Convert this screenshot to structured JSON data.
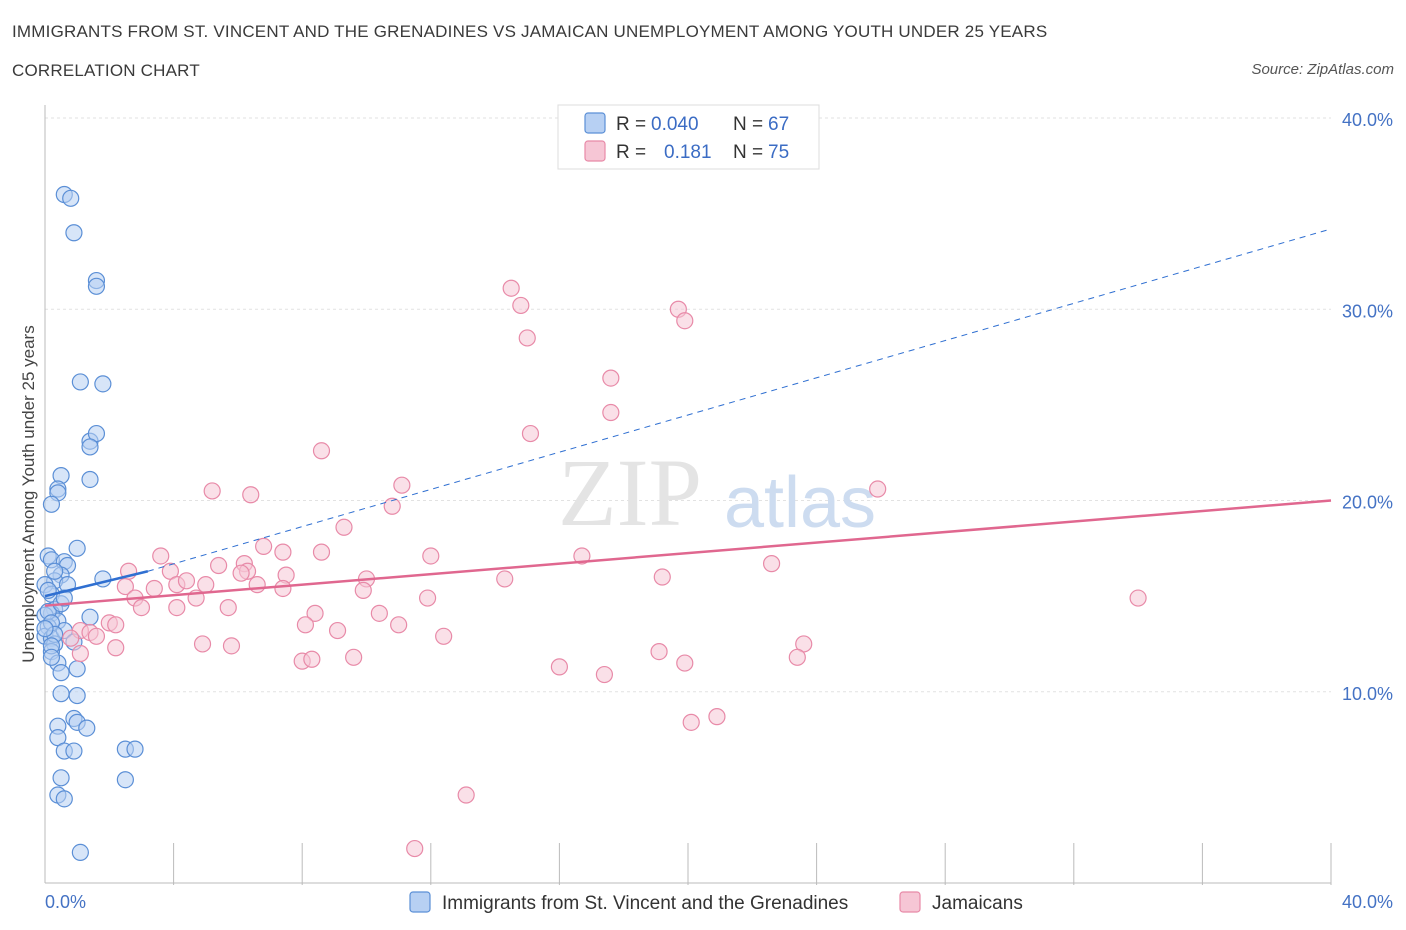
{
  "title": "IMMIGRANTS FROM ST. VINCENT AND THE GRENADINES VS JAMAICAN UNEMPLOYMENT AMONG YOUTH UNDER 25 YEARS",
  "subtitle": "CORRELATION CHART",
  "source": "Source: ZipAtlas.com",
  "colors": {
    "blue": "#5b8fd6",
    "blue_fill": "#b7d0f3",
    "pink": "#e88aa8",
    "pink_fill": "#f6c6d5",
    "blue_line": "#2f6fd1",
    "pink_line": "#e0678f"
  },
  "legend": {
    "r_label": "R =",
    "n_label": "N =",
    "series": [
      {
        "r": "0.040",
        "n": "67"
      },
      {
        "r": "0.181",
        "n": "75"
      }
    ]
  },
  "watermark": {
    "zip": "ZIP",
    "atlas": "atlas"
  },
  "chart_data": {
    "type": "scatter",
    "xlabel": "",
    "ylabel": "Unemployment Among Youth under 25 years",
    "xlim": [
      0,
      40
    ],
    "ylim": [
      0,
      40
    ],
    "x_tick_labels": [
      "0.0%",
      "40.0%"
    ],
    "y_ticks": [
      10,
      20,
      30,
      40
    ],
    "y_tick_labels": [
      "10.0%",
      "20.0%",
      "30.0%",
      "40.0%"
    ],
    "grid": true,
    "legend_position": "top-center",
    "series": [
      {
        "name": "Immigrants from St. Vincent and the Grenadines",
        "trend": {
          "x": [
            0,
            3.2
          ],
          "y": [
            15.0,
            16.3
          ],
          "dashed_extension": {
            "x": [
              3.2,
              40
            ],
            "y": [
              16.3,
              34.2
            ]
          }
        },
        "points": [
          [
            0.6,
            36.0
          ],
          [
            0.8,
            35.8
          ],
          [
            0.9,
            34.0
          ],
          [
            1.6,
            31.5
          ],
          [
            1.6,
            31.2
          ],
          [
            1.1,
            26.2
          ],
          [
            1.8,
            26.1
          ],
          [
            1.4,
            23.1
          ],
          [
            1.6,
            23.5
          ],
          [
            1.4,
            22.8
          ],
          [
            1.4,
            21.1
          ],
          [
            0.5,
            21.3
          ],
          [
            0.4,
            20.6
          ],
          [
            0.4,
            20.4
          ],
          [
            0.2,
            19.8
          ],
          [
            0.1,
            17.1
          ],
          [
            0.2,
            16.9
          ],
          [
            0.6,
            16.8
          ],
          [
            0.7,
            16.6
          ],
          [
            1.0,
            17.5
          ],
          [
            0.5,
            16.1
          ],
          [
            0.3,
            15.8
          ],
          [
            0.0,
            15.6
          ],
          [
            0.7,
            15.6
          ],
          [
            1.8,
            15.9
          ],
          [
            0.2,
            15.1
          ],
          [
            0.3,
            14.3
          ],
          [
            0.2,
            14.1
          ],
          [
            0.0,
            14.0
          ],
          [
            0.4,
            13.7
          ],
          [
            0.1,
            13.4
          ],
          [
            0.0,
            12.9
          ],
          [
            0.2,
            12.8
          ],
          [
            0.3,
            12.5
          ],
          [
            0.6,
            13.2
          ],
          [
            0.9,
            12.6
          ],
          [
            0.2,
            12.1
          ],
          [
            0.4,
            11.5
          ],
          [
            0.5,
            11.0
          ],
          [
            1.0,
            11.2
          ],
          [
            0.5,
            9.9
          ],
          [
            1.0,
            9.8
          ],
          [
            0.4,
            8.2
          ],
          [
            0.9,
            8.6
          ],
          [
            1.0,
            8.4
          ],
          [
            1.3,
            8.1
          ],
          [
            0.4,
            7.6
          ],
          [
            0.6,
            6.9
          ],
          [
            0.9,
            6.9
          ],
          [
            2.5,
            7.0
          ],
          [
            2.8,
            7.0
          ],
          [
            0.5,
            5.5
          ],
          [
            2.5,
            5.4
          ],
          [
            0.4,
            4.6
          ],
          [
            0.6,
            4.4
          ],
          [
            1.1,
            1.6
          ],
          [
            0.1,
            14.2
          ],
          [
            0.2,
            13.6
          ],
          [
            0.3,
            13.0
          ],
          [
            0.5,
            14.6
          ],
          [
            0.2,
            12.4
          ],
          [
            0.0,
            13.3
          ],
          [
            0.3,
            16.3
          ],
          [
            0.1,
            15.3
          ],
          [
            1.4,
            13.9
          ],
          [
            0.6,
            14.9
          ],
          [
            0.2,
            11.8
          ]
        ]
      },
      {
        "name": "Jamaicans",
        "trend": {
          "x": [
            0,
            40
          ],
          "y": [
            14.5,
            20.0
          ]
        },
        "points": [
          [
            14.8,
            30.2
          ],
          [
            15.0,
            28.5
          ],
          [
            14.5,
            31.1
          ],
          [
            19.7,
            30.0
          ],
          [
            19.9,
            29.4
          ],
          [
            17.6,
            26.4
          ],
          [
            17.6,
            24.6
          ],
          [
            15.1,
            23.5
          ],
          [
            8.6,
            22.6
          ],
          [
            11.1,
            20.8
          ],
          [
            5.2,
            20.5
          ],
          [
            6.4,
            20.3
          ],
          [
            10.8,
            19.7
          ],
          [
            25.9,
            20.6
          ],
          [
            9.3,
            18.6
          ],
          [
            6.8,
            17.6
          ],
          [
            7.4,
            17.3
          ],
          [
            8.6,
            17.3
          ],
          [
            12.0,
            17.1
          ],
          [
            3.6,
            17.1
          ],
          [
            16.7,
            17.1
          ],
          [
            2.6,
            16.3
          ],
          [
            3.9,
            16.3
          ],
          [
            5.4,
            16.6
          ],
          [
            6.2,
            16.7
          ],
          [
            6.3,
            16.3
          ],
          [
            7.5,
            16.1
          ],
          [
            6.1,
            16.2
          ],
          [
            10.0,
            15.9
          ],
          [
            14.3,
            15.9
          ],
          [
            19.2,
            16.0
          ],
          [
            22.6,
            16.7
          ],
          [
            2.5,
            15.5
          ],
          [
            3.4,
            15.4
          ],
          [
            4.1,
            15.6
          ],
          [
            4.4,
            15.8
          ],
          [
            5.0,
            15.6
          ],
          [
            6.6,
            15.6
          ],
          [
            7.4,
            15.4
          ],
          [
            9.9,
            15.3
          ],
          [
            2.8,
            14.9
          ],
          [
            4.7,
            14.9
          ],
          [
            11.9,
            14.9
          ],
          [
            3.0,
            14.4
          ],
          [
            4.1,
            14.4
          ],
          [
            5.7,
            14.4
          ],
          [
            8.4,
            14.1
          ],
          [
            10.4,
            14.1
          ],
          [
            34.0,
            14.9
          ],
          [
            2.0,
            13.6
          ],
          [
            2.2,
            13.5
          ],
          [
            8.1,
            13.5
          ],
          [
            9.1,
            13.2
          ],
          [
            11.0,
            13.5
          ],
          [
            1.1,
            13.2
          ],
          [
            1.4,
            13.1
          ],
          [
            0.8,
            12.8
          ],
          [
            1.6,
            12.9
          ],
          [
            12.4,
            12.9
          ],
          [
            4.9,
            12.5
          ],
          [
            5.8,
            12.4
          ],
          [
            2.2,
            12.3
          ],
          [
            1.1,
            12.0
          ],
          [
            9.6,
            11.8
          ],
          [
            19.1,
            12.1
          ],
          [
            23.6,
            12.5
          ],
          [
            8.0,
            11.6
          ],
          [
            8.3,
            11.7
          ],
          [
            16.0,
            11.3
          ],
          [
            19.9,
            11.5
          ],
          [
            23.4,
            11.8
          ],
          [
            17.4,
            10.9
          ],
          [
            20.1,
            8.4
          ],
          [
            20.9,
            8.7
          ],
          [
            13.1,
            4.6
          ],
          [
            11.5,
            1.8
          ]
        ]
      }
    ]
  },
  "bottom_legend": [
    "Immigrants from St. Vincent and the Grenadines",
    "Jamaicans"
  ]
}
